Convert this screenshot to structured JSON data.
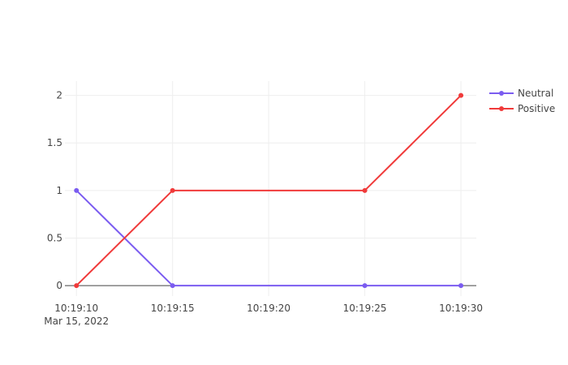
{
  "chart_data": {
    "type": "line",
    "title": "",
    "xlabel": "",
    "ylabel": "",
    "x": [
      10,
      15,
      25,
      30
    ],
    "x_ticks": [
      {
        "value": 10,
        "label": "10:19:10",
        "sublabel": "Mar 15, 2022"
      },
      {
        "value": 15,
        "label": "10:19:15",
        "sublabel": ""
      },
      {
        "value": 20,
        "label": "10:19:20",
        "sublabel": ""
      },
      {
        "value": 25,
        "label": "10:19:25",
        "sublabel": ""
      },
      {
        "value": 30,
        "label": "10:19:30",
        "sublabel": ""
      }
    ],
    "xlim": [
      9.4,
      30.8
    ],
    "ylim": [
      -0.11,
      2.15
    ],
    "y_ticks": [
      {
        "value": 0,
        "label": "0"
      },
      {
        "value": 0.5,
        "label": "0.5"
      },
      {
        "value": 1,
        "label": "1"
      },
      {
        "value": 1.5,
        "label": "1.5"
      },
      {
        "value": 2,
        "label": "2"
      }
    ],
    "grid": true,
    "legend_position": "top-right",
    "series": [
      {
        "name": "Neutral",
        "color": "#7b5cf0",
        "values": [
          1,
          0,
          0,
          0
        ]
      },
      {
        "name": "Positive",
        "color": "#f03a3a",
        "values": [
          0,
          1,
          1,
          2
        ]
      }
    ]
  }
}
